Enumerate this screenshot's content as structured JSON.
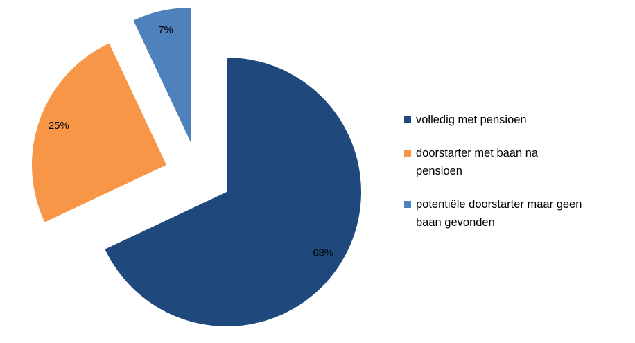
{
  "chart_data": {
    "type": "pie",
    "categories": [
      "volledig met pensioen",
      "doorstarter met baan na pensioen",
      "potentiële doorstarter maar geen baan gevonden"
    ],
    "values": [
      68,
      25,
      7
    ],
    "value_labels": [
      "68%",
      "25%",
      "7%"
    ],
    "colors": [
      "#1f497d",
      "#f79646",
      "#4f81bd"
    ]
  }
}
